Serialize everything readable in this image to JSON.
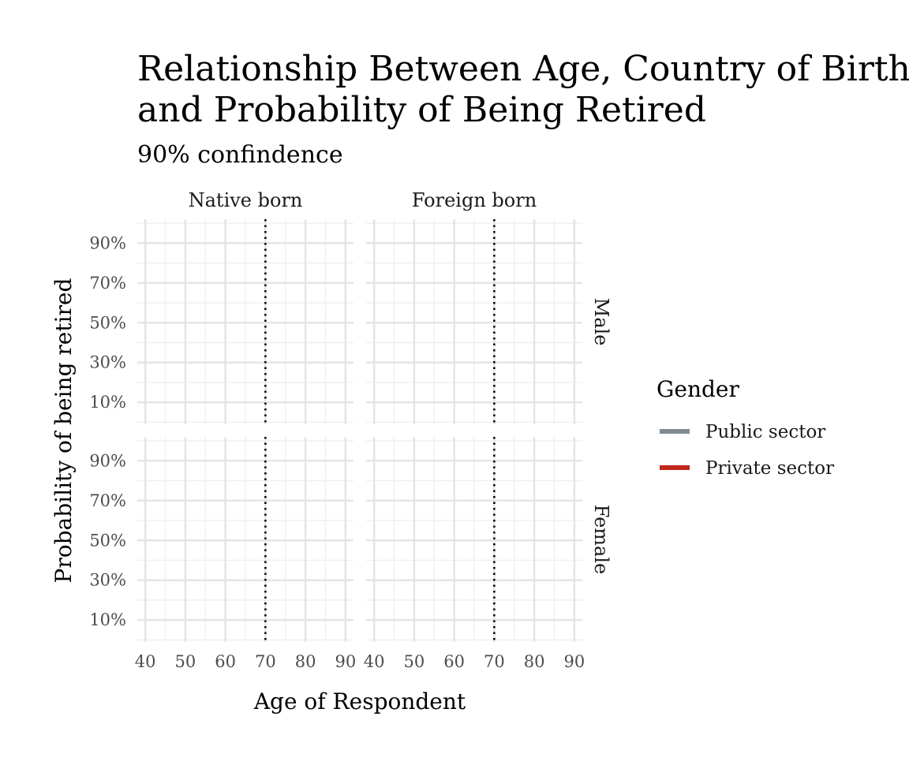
{
  "chart_data": {
    "type": "line",
    "title_lines": [
      "Relationship Between Age, Country of Birth,",
      "and Probability of Being Retired"
    ],
    "subtitle": "90% confindence",
    "xlabel": "Age of Respondent",
    "ylabel": "Probability of being retired",
    "facet_cols": [
      "Native born",
      "Foreign born"
    ],
    "facet_rows": [
      "Male",
      "Female"
    ],
    "x_ticks": [
      40,
      50,
      60,
      70,
      80,
      90
    ],
    "x_tick_labels": [
      "40",
      "50",
      "60",
      "70",
      "80",
      "90"
    ],
    "xlim": [
      38,
      92
    ],
    "y_ticks": [
      0.1,
      0.3,
      0.5,
      0.7,
      0.9
    ],
    "y_tick_labels": [
      "10%",
      "30%",
      "50%",
      "70%",
      "90%"
    ],
    "ylim": [
      -0.01,
      1.02
    ],
    "reference_line_x": 70,
    "grid": true,
    "legend": {
      "title": "Gender",
      "position": "right",
      "entries": [
        {
          "name": "Public sector",
          "color": "#7f8c94"
        },
        {
          "name": "Private sector",
          "color": "#c0281a"
        }
      ]
    },
    "series": [
      {
        "name": "Public sector",
        "values": []
      },
      {
        "name": "Private sector",
        "values": []
      }
    ]
  },
  "colors": {
    "grid_major": "#e5e5e5",
    "grid_minor": "#f0f0f0",
    "reference_line": "#000000"
  }
}
